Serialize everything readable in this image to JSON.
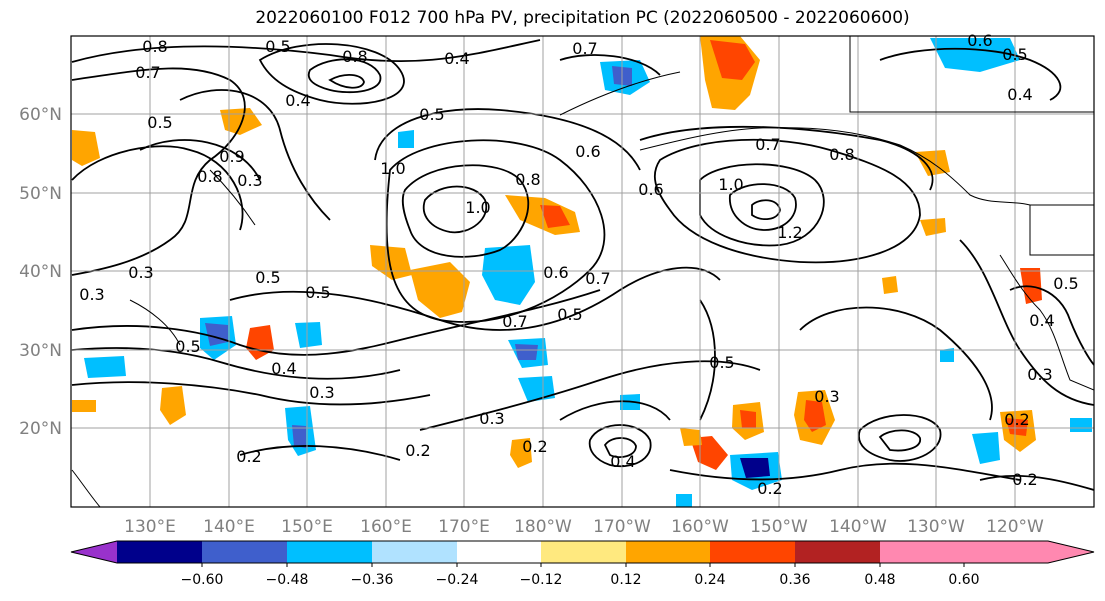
{
  "title": "2022060100 F012 700 hPa PV, precipitation PC (2022060500 - 2022060600)",
  "map": {
    "lat_labels": [
      "60°N",
      "50°N",
      "40°N",
      "30°N",
      "20°N"
    ],
    "lon_labels": [
      "130°E",
      "140°E",
      "150°E",
      "160°E",
      "170°E",
      "180°W",
      "170°W",
      "160°W",
      "150°W",
      "140°W",
      "130°W",
      "120°W"
    ],
    "contour_labels": [
      "0.8",
      "0.5",
      "0.7",
      "0.8",
      "0.4",
      "0.7",
      "0.6",
      "0.5",
      "0.3",
      "0.4",
      "0.5",
      "0.8",
      "0.9",
      "1.0",
      "0.8",
      "1.0",
      "0.6",
      "0.7",
      "0.8",
      "0.6",
      "1.0",
      "1.2",
      "0.3",
      "0.5",
      "0.5",
      "0.6",
      "0.7",
      "0.5",
      "0.7",
      "0.5",
      "0.3",
      "0.4",
      "0.3",
      "0.2",
      "0.2",
      "0.3",
      "0.2",
      "0.4",
      "0.5",
      "0.3",
      "0.2",
      "0.5",
      "0.2",
      "0.2",
      "0.4",
      "0.3",
      "0.5",
      "0.4"
    ],
    "colors": {
      "contour": "#000000",
      "grid": "#a0a0a0",
      "coast": "#000000"
    }
  },
  "colorbar": {
    "ticks": [
      "−0.60",
      "−0.48",
      "−0.36",
      "−0.24",
      "−0.12",
      "0.12",
      "0.24",
      "0.36",
      "0.48",
      "0.60"
    ],
    "colors": [
      "#9932cc",
      "#00008b",
      "#3f5fcc",
      "#00bfff",
      "#b0e2ff",
      "#ffffff",
      "#ffe97f",
      "#ffa500",
      "#ff4500",
      "#b22222",
      "#ff88b0"
    ]
  }
}
